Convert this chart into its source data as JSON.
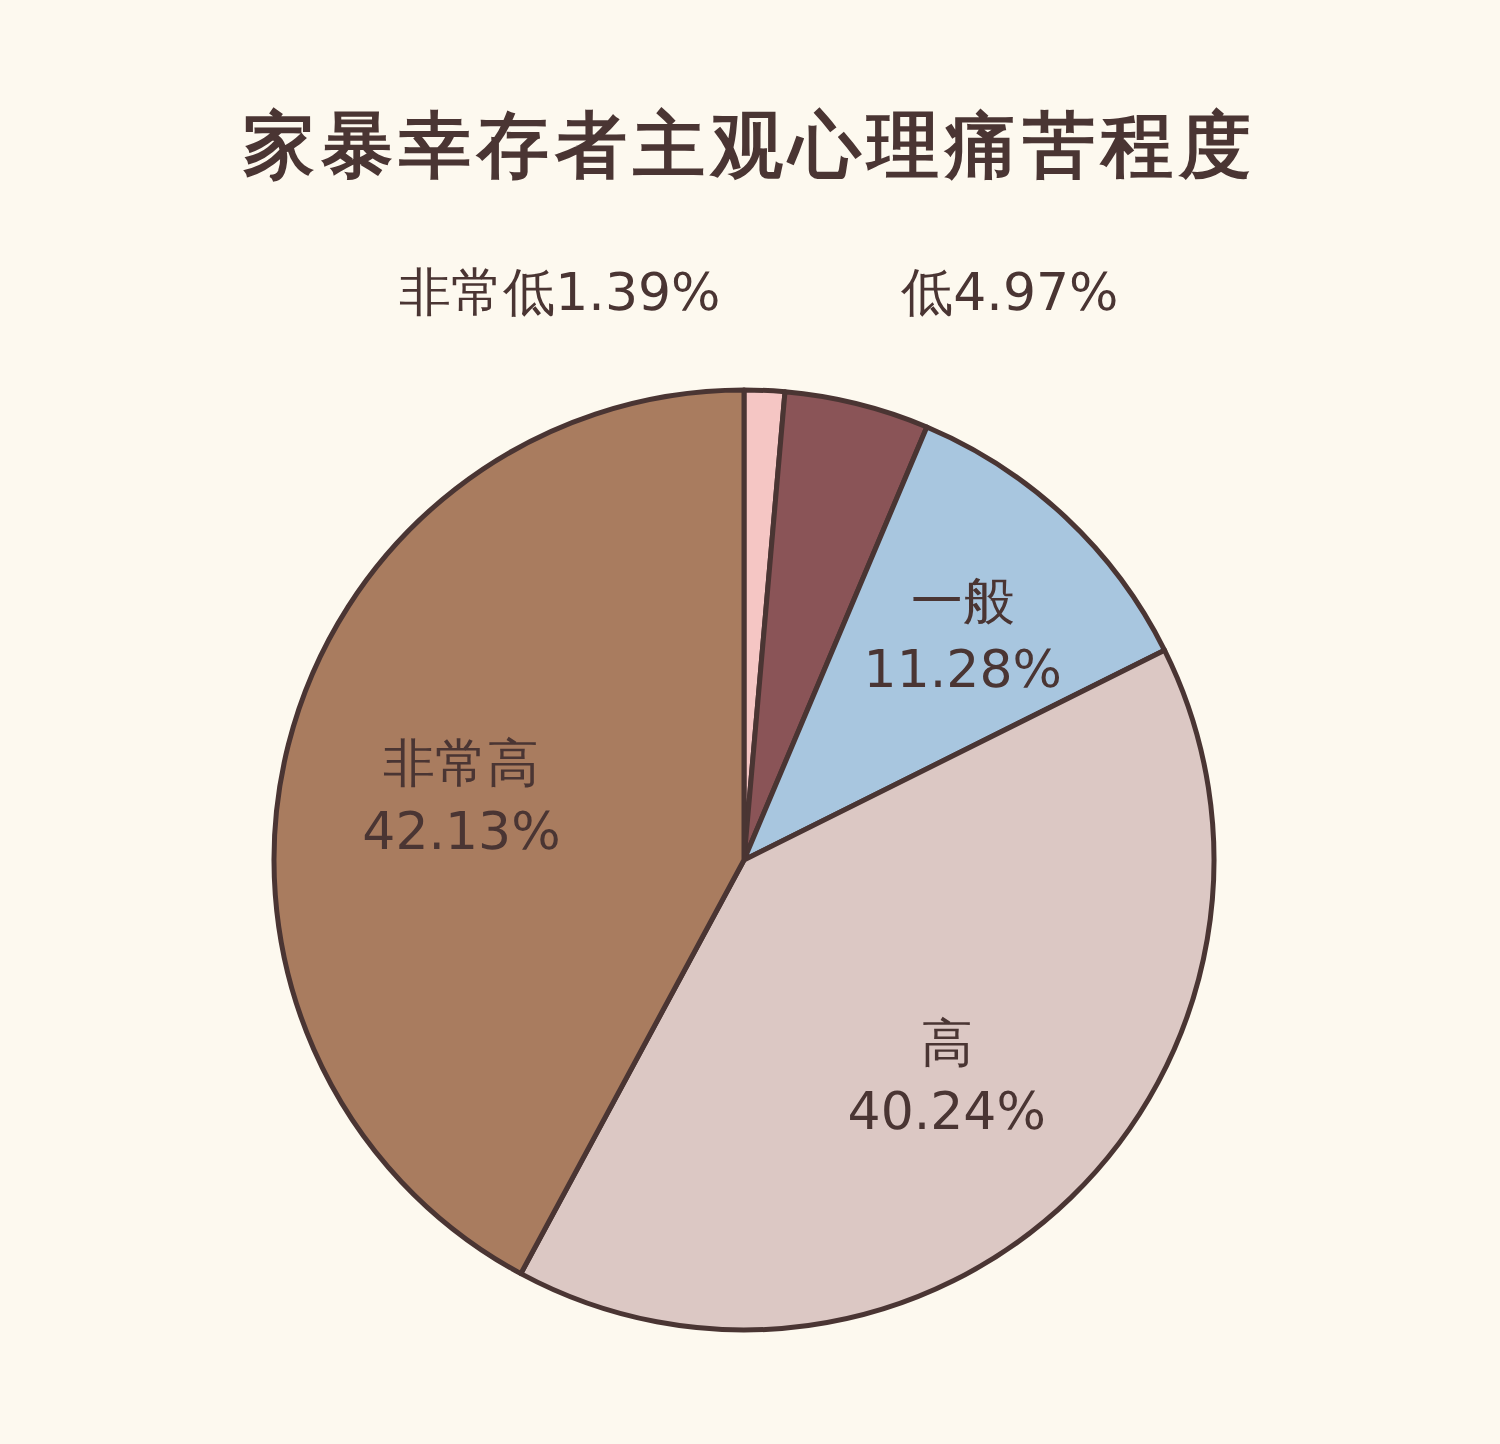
{
  "chart_data": {
    "type": "pie",
    "title": "家暴幸存者主观心理痛苦程度",
    "categories": [
      "非常低",
      "低",
      "一般",
      "高",
      "非常高"
    ],
    "values": [
      1.39,
      4.97,
      11.28,
      40.24,
      42.13
    ],
    "value_labels": [
      "1.39%",
      "4.97%",
      "11.28%",
      "40.24%",
      "42.13%"
    ],
    "colors": [
      "#f5c6c4",
      "#8a5457",
      "#a8c6df",
      "#dcc8c4",
      "#a97c5f"
    ]
  }
}
